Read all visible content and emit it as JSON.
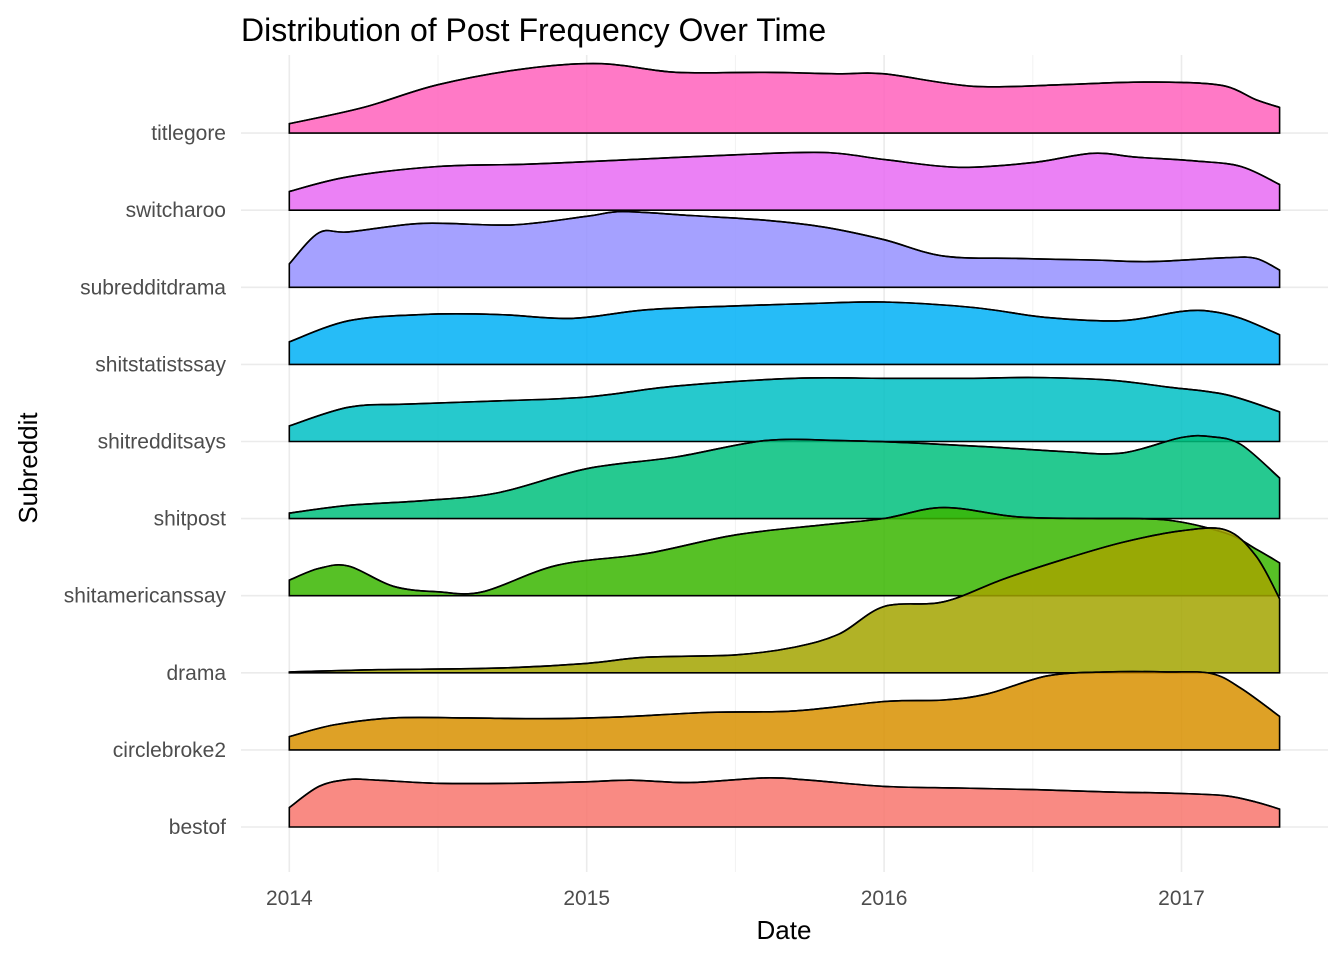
{
  "chart_data": {
    "type": "area",
    "subtype": "ridgeline",
    "title": "Distribution of Post Frequency Over Time",
    "xlabel": "Date",
    "ylabel": "Subreddit",
    "xlim": [
      2013.83,
      2017.5
    ],
    "x_ticks": [
      "2014",
      "2015",
      "2016",
      "2017"
    ],
    "x_tick_values": [
      2014,
      2015,
      2016,
      2017
    ],
    "categories": [
      "bestof",
      "circlebroke2",
      "drama",
      "shitamericanssay",
      "shitpost",
      "shitredditsays",
      "shitstatistssay",
      "subredditdrama",
      "switcharoo",
      "titlegore"
    ],
    "grid": true,
    "legend": "none",
    "series": [
      {
        "name": "bestof",
        "color": "#F8766D",
        "x": [
          2014.0,
          2014.1,
          2014.2,
          2014.3,
          2014.5,
          2014.75,
          2015.0,
          2015.15,
          2015.35,
          2015.6,
          2015.75,
          2016.0,
          2016.25,
          2016.5,
          2016.75,
          2017.0,
          2017.15,
          2017.25,
          2017.33
        ],
        "values": [
          0.25,
          0.52,
          0.61,
          0.6,
          0.56,
          0.56,
          0.58,
          0.6,
          0.57,
          0.63,
          0.6,
          0.52,
          0.5,
          0.48,
          0.45,
          0.43,
          0.4,
          0.32,
          0.23
        ]
      },
      {
        "name": "circlebroke2",
        "color": "#D89000",
        "x": [
          2014.0,
          2014.15,
          2014.35,
          2014.6,
          2014.85,
          2015.1,
          2015.4,
          2015.7,
          2016.0,
          2016.2,
          2016.35,
          2016.55,
          2016.75,
          2016.95,
          2017.1,
          2017.2,
          2017.33
        ],
        "values": [
          0.17,
          0.32,
          0.41,
          0.41,
          0.4,
          0.42,
          0.48,
          0.5,
          0.62,
          0.64,
          0.72,
          0.95,
          1.0,
          1.0,
          0.98,
          0.79,
          0.43
        ]
      },
      {
        "name": "drama",
        "color": "#A3A500",
        "x": [
          2014.0,
          2014.3,
          2014.7,
          2015.0,
          2015.2,
          2015.5,
          2015.7,
          2015.85,
          2016.0,
          2016.2,
          2016.4,
          2016.6,
          2016.8,
          2017.0,
          2017.15,
          2017.25,
          2017.33
        ],
        "values": [
          0.01,
          0.04,
          0.06,
          0.12,
          0.2,
          0.23,
          0.33,
          0.5,
          0.85,
          0.91,
          1.2,
          1.45,
          1.67,
          1.82,
          1.83,
          1.5,
          0.95
        ]
      },
      {
        "name": "shitamericanssay",
        "color": "#39B600",
        "x": [
          2014.0,
          2014.1,
          2014.2,
          2014.35,
          2014.5,
          2014.65,
          2014.9,
          2015.2,
          2015.5,
          2015.8,
          2016.0,
          2016.2,
          2016.45,
          2016.7,
          2016.95,
          2017.15,
          2017.25,
          2017.33
        ],
        "values": [
          0.2,
          0.35,
          0.38,
          0.12,
          0.05,
          0.05,
          0.39,
          0.54,
          0.78,
          0.91,
          0.99,
          1.13,
          1.01,
          0.99,
          0.97,
          0.8,
          0.6,
          0.42
        ]
      },
      {
        "name": "shitpost",
        "color": "#00BF7D",
        "x": [
          2014.0,
          2014.2,
          2014.45,
          2014.7,
          2015.0,
          2015.3,
          2015.6,
          2015.85,
          2016.1,
          2016.35,
          2016.6,
          2016.8,
          2017.0,
          2017.1,
          2017.2,
          2017.33
        ],
        "values": [
          0.07,
          0.17,
          0.23,
          0.33,
          0.64,
          0.79,
          1.0,
          1.0,
          0.97,
          0.92,
          0.86,
          0.84,
          1.04,
          1.05,
          0.95,
          0.52
        ]
      },
      {
        "name": "shitredditsays",
        "color": "#00BFC4",
        "x": [
          2014.0,
          2014.2,
          2014.4,
          2014.7,
          2015.0,
          2015.3,
          2015.7,
          2016.0,
          2016.3,
          2016.5,
          2016.75,
          2016.95,
          2017.15,
          2017.33
        ],
        "values": [
          0.2,
          0.44,
          0.48,
          0.52,
          0.57,
          0.71,
          0.81,
          0.81,
          0.81,
          0.82,
          0.79,
          0.7,
          0.6,
          0.38
        ]
      },
      {
        "name": "shitstatistssay",
        "color": "#00B0F6",
        "x": [
          2014.0,
          2014.2,
          2014.45,
          2014.7,
          2014.95,
          2015.2,
          2015.5,
          2015.75,
          2016.0,
          2016.3,
          2016.55,
          2016.8,
          2017.0,
          2017.1,
          2017.2,
          2017.33
        ],
        "values": [
          0.29,
          0.56,
          0.64,
          0.64,
          0.59,
          0.7,
          0.75,
          0.78,
          0.8,
          0.73,
          0.6,
          0.56,
          0.68,
          0.68,
          0.59,
          0.38
        ]
      },
      {
        "name": "subredditdrama",
        "color": "#9590FF",
        "x": [
          2014.0,
          2014.1,
          2014.2,
          2014.45,
          2014.75,
          2015.0,
          2015.12,
          2015.35,
          2015.6,
          2015.8,
          2016.0,
          2016.2,
          2016.45,
          2016.7,
          2016.9,
          2017.15,
          2017.25,
          2017.33
        ],
        "values": [
          0.3,
          0.7,
          0.71,
          0.82,
          0.8,
          0.91,
          0.97,
          0.92,
          0.86,
          0.77,
          0.61,
          0.4,
          0.37,
          0.35,
          0.33,
          0.38,
          0.37,
          0.22
        ]
      },
      {
        "name": "switcharoo",
        "color": "#E76BF3",
        "x": [
          2014.0,
          2014.2,
          2014.5,
          2014.8,
          2015.1,
          2015.5,
          2015.8,
          2016.0,
          2016.25,
          2016.5,
          2016.7,
          2016.85,
          2017.05,
          2017.2,
          2017.33
        ],
        "values": [
          0.24,
          0.43,
          0.56,
          0.59,
          0.64,
          0.71,
          0.74,
          0.65,
          0.55,
          0.61,
          0.73,
          0.68,
          0.63,
          0.56,
          0.33
        ]
      },
      {
        "name": "titlegore",
        "color": "#FF62BC",
        "x": [
          2014.0,
          2014.25,
          2014.5,
          2014.8,
          2015.05,
          2015.3,
          2015.6,
          2015.85,
          2016.0,
          2016.3,
          2016.6,
          2016.8,
          2017.0,
          2017.15,
          2017.25,
          2017.33
        ],
        "values": [
          0.12,
          0.33,
          0.62,
          0.83,
          0.89,
          0.78,
          0.78,
          0.76,
          0.76,
          0.6,
          0.62,
          0.65,
          0.65,
          0.6,
          0.43,
          0.33
        ]
      }
    ]
  }
}
